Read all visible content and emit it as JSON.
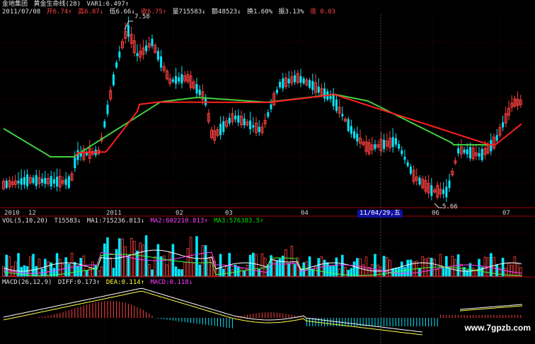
{
  "header": {
    "stock_name": "金地集团",
    "indicator_name": "黄金生命线(28)",
    "var1": "VAR1:6.497↑",
    "date": "2011/07/08",
    "open": "开6.74↑",
    "high": "高6.87↓",
    "low": "低6.66↓",
    "close": "收6.75↑",
    "volume": "量715583↓",
    "amount": "额48523↓",
    "turnover": "换1.60%",
    "amplitude": "振3.13%",
    "change": "涨 0.03"
  },
  "price_panel": {
    "peak_label": "7.58",
    "low_label": "5.66",
    "cursor_date": "11/04/29,五",
    "x_labels": [
      "2010",
      "12",
      "2011",
      "02",
      "03",
      "04",
      "06",
      "07"
    ]
  },
  "vol_panel": {
    "params": "VOL(5,10,20)",
    "v": "T15583↓",
    "ma1": "MA1:715236.813↓",
    "ma2": "MA2:602210.813↑",
    "ma3": "MA3:576383.5↑"
  },
  "macd_panel": {
    "params": "MACD(26,12,9)",
    "diff": "DIFF:0.173↑",
    "dea": "DEA:0.114↑",
    "macd": "MACD:0.118↓"
  },
  "watermark": "www.7gpzb.com",
  "colors": {
    "up": "#ff4040",
    "down": "#00e8ff",
    "lifeline_green": "#40d040",
    "lifeline_red": "#ff2020",
    "grid": "#a00000",
    "badge": "#1010a0"
  },
  "chart_data": {
    "type": "candlestick",
    "date_axis": [
      "2010",
      "12",
      "2011",
      "02",
      "03",
      "04",
      "06",
      "07"
    ],
    "price_peak": 7.58,
    "price_low": 5.66,
    "last_close": 6.75
  }
}
